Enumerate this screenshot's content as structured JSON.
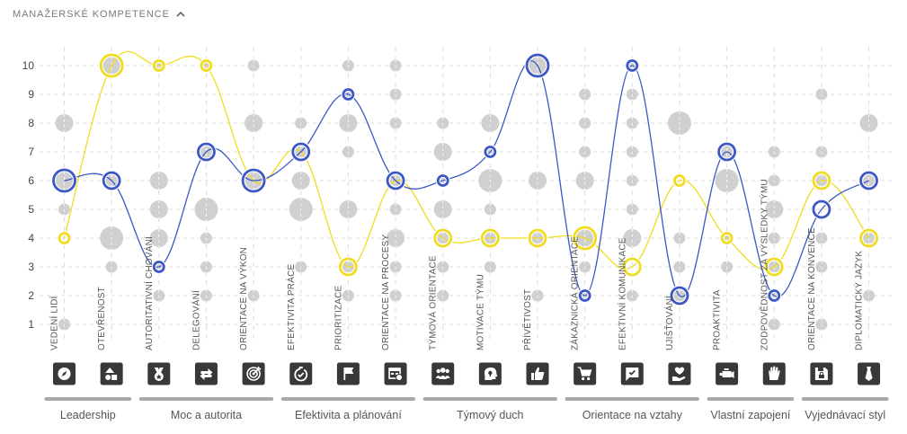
{
  "header": {
    "title": "MANAŽERSKÉ KOMPETENCE",
    "chevron_icon": "chevron-up-icon"
  },
  "colors": {
    "yellow": "#f0dc1e",
    "blue": "#3d57c4",
    "bubble": "#c8c8c8",
    "icon_bg": "#383838",
    "group_bar": "#a9a9a9",
    "grid": "#dcdcdc"
  },
  "chart_data": {
    "type": "line",
    "title": "MANAŽERSKÉ KOMPETENCE",
    "ylim": [
      1,
      10
    ],
    "y_ticks": [
      "1",
      "2",
      "3",
      "4",
      "5",
      "6",
      "7",
      "8",
      "9",
      "10"
    ],
    "grid": true,
    "categories": [
      "VEDENÍ LIDÍ",
      "OTEVŘENOST",
      "AUTORITATIVNÍ CHOVÁNÍ",
      "DELEGOVÁNÍ",
      "ORIENTACE NA VÝKON",
      "EFEKTIVITA PRÁCE",
      "PRIORITIZACE",
      "ORIENTACE NA PROCESY",
      "TÝMOVÁ ORIENTACE",
      "MOTIVACE TÝMU",
      "PŘÍVĚTIVOST",
      "ZÁKAZNICKÁ ORIENTACE",
      "EFEKTIVNÍ KOMUNIKACE",
      "UJIŠŤOVÁNÍ",
      "PROAKTIVITA",
      "ZODPOVĚDNOST ZA VÝSLEDKY TÝMU",
      "ORIENTACE NA KONVENCE",
      "DIPLOMATICKÝ JAZYK"
    ],
    "icons": [
      "compass-icon",
      "shapes-icon",
      "medal-icon",
      "swap-arrows-icon",
      "target-icon",
      "check-timer-icon",
      "flag-icon",
      "process-table-icon",
      "team-icon",
      "head-idea-icon",
      "thumbs-up-icon",
      "shopping-cart-icon",
      "chat-check-icon",
      "hand-heart-icon",
      "engine-icon",
      "raised-hand-icon",
      "floppy-lock-icon",
      "tie-icon"
    ],
    "series": [
      {
        "name": "yellow",
        "color": "#f0dc1e",
        "values": [
          4,
          10,
          10,
          10,
          6,
          7,
          3,
          6,
          4,
          4,
          4,
          4,
          3,
          6,
          4,
          3,
          6,
          4
        ],
        "sizes": [
          1,
          3,
          1,
          1,
          3,
          2,
          2,
          2,
          2,
          2,
          2,
          3,
          2,
          1,
          1,
          2,
          2,
          2
        ]
      },
      {
        "name": "blue",
        "color": "#3d57c4",
        "values": [
          6,
          6,
          3,
          7,
          6,
          7,
          9,
          6,
          6,
          7,
          10,
          2,
          10,
          2,
          7,
          2,
          5,
          6
        ],
        "sizes": [
          3,
          2,
          1,
          2,
          3,
          2,
          1,
          2,
          1,
          1,
          3,
          1,
          1,
          2,
          2,
          1,
          2,
          2
        ]
      }
    ],
    "distribution": [
      [
        [
          1,
          1
        ],
        [
          5,
          1
        ],
        [
          6,
          2
        ],
        [
          8,
          2
        ]
      ],
      [
        [
          3,
          1
        ],
        [
          4,
          3
        ],
        [
          6,
          1
        ],
        [
          10,
          2
        ]
      ],
      [
        [
          2,
          1
        ],
        [
          3,
          1
        ],
        [
          4,
          2
        ],
        [
          5,
          2
        ],
        [
          6,
          2
        ],
        [
          10,
          1
        ]
      ],
      [
        [
          2,
          1
        ],
        [
          3,
          1
        ],
        [
          4,
          1
        ],
        [
          5,
          3
        ],
        [
          7,
          2
        ],
        [
          10,
          1
        ]
      ],
      [
        [
          2,
          1
        ],
        [
          6,
          2
        ],
        [
          8,
          2
        ],
        [
          10,
          1
        ]
      ],
      [
        [
          3,
          1
        ],
        [
          5,
          3
        ],
        [
          6,
          2
        ],
        [
          7,
          1
        ],
        [
          8,
          1
        ]
      ],
      [
        [
          2,
          1
        ],
        [
          3,
          1
        ],
        [
          5,
          2
        ],
        [
          7,
          1
        ],
        [
          8,
          2
        ],
        [
          9,
          1
        ],
        [
          10,
          1
        ]
      ],
      [
        [
          2,
          1
        ],
        [
          3,
          1
        ],
        [
          4,
          2
        ],
        [
          5,
          1
        ],
        [
          6,
          1
        ],
        [
          8,
          1
        ],
        [
          9,
          1
        ],
        [
          10,
          1
        ]
      ],
      [
        [
          2,
          1
        ],
        [
          3,
          1
        ],
        [
          4,
          1
        ],
        [
          5,
          2
        ],
        [
          6,
          1
        ],
        [
          7,
          2
        ],
        [
          8,
          1
        ]
      ],
      [
        [
          3,
          1
        ],
        [
          4,
          1
        ],
        [
          5,
          1
        ],
        [
          6,
          3
        ],
        [
          7,
          1
        ],
        [
          8,
          2
        ]
      ],
      [
        [
          2,
          1
        ],
        [
          4,
          1
        ],
        [
          6,
          2
        ],
        [
          10,
          2
        ]
      ],
      [
        [
          2,
          1
        ],
        [
          3,
          1
        ],
        [
          4,
          2
        ],
        [
          6,
          2
        ],
        [
          7,
          1
        ],
        [
          8,
          1
        ],
        [
          9,
          1
        ]
      ],
      [
        [
          2,
          1
        ],
        [
          4,
          2
        ],
        [
          5,
          1
        ],
        [
          6,
          1
        ],
        [
          7,
          1
        ],
        [
          8,
          1
        ],
        [
          9,
          1
        ],
        [
          10,
          1
        ]
      ],
      [
        [
          2,
          1
        ],
        [
          3,
          1
        ],
        [
          4,
          1
        ],
        [
          8,
          3
        ]
      ],
      [
        [
          3,
          1
        ],
        [
          4,
          1
        ],
        [
          6,
          3
        ],
        [
          7,
          2
        ]
      ],
      [
        [
          1,
          1
        ],
        [
          2,
          1
        ],
        [
          3,
          1
        ],
        [
          4,
          1
        ],
        [
          5,
          2
        ],
        [
          6,
          1
        ],
        [
          7,
          1
        ]
      ],
      [
        [
          1,
          1
        ],
        [
          3,
          1
        ],
        [
          4,
          1
        ],
        [
          6,
          1
        ],
        [
          7,
          1
        ],
        [
          9,
          1
        ]
      ],
      [
        [
          2,
          1
        ],
        [
          4,
          1
        ],
        [
          6,
          2
        ],
        [
          8,
          2
        ]
      ]
    ],
    "groups": [
      {
        "label": "Leadership",
        "start": 0,
        "end": 1
      },
      {
        "label": "Moc a autorita",
        "start": 2,
        "end": 4
      },
      {
        "label": "Efektivita a plánování",
        "start": 5,
        "end": 7
      },
      {
        "label": "Týmový duch",
        "start": 8,
        "end": 10
      },
      {
        "label": "Orientace na vztahy",
        "start": 11,
        "end": 13
      },
      {
        "label": "Vlastní zapojení",
        "start": 14,
        "end": 15
      },
      {
        "label": "Vyjednávací styl",
        "start": 16,
        "end": 17
      }
    ]
  }
}
